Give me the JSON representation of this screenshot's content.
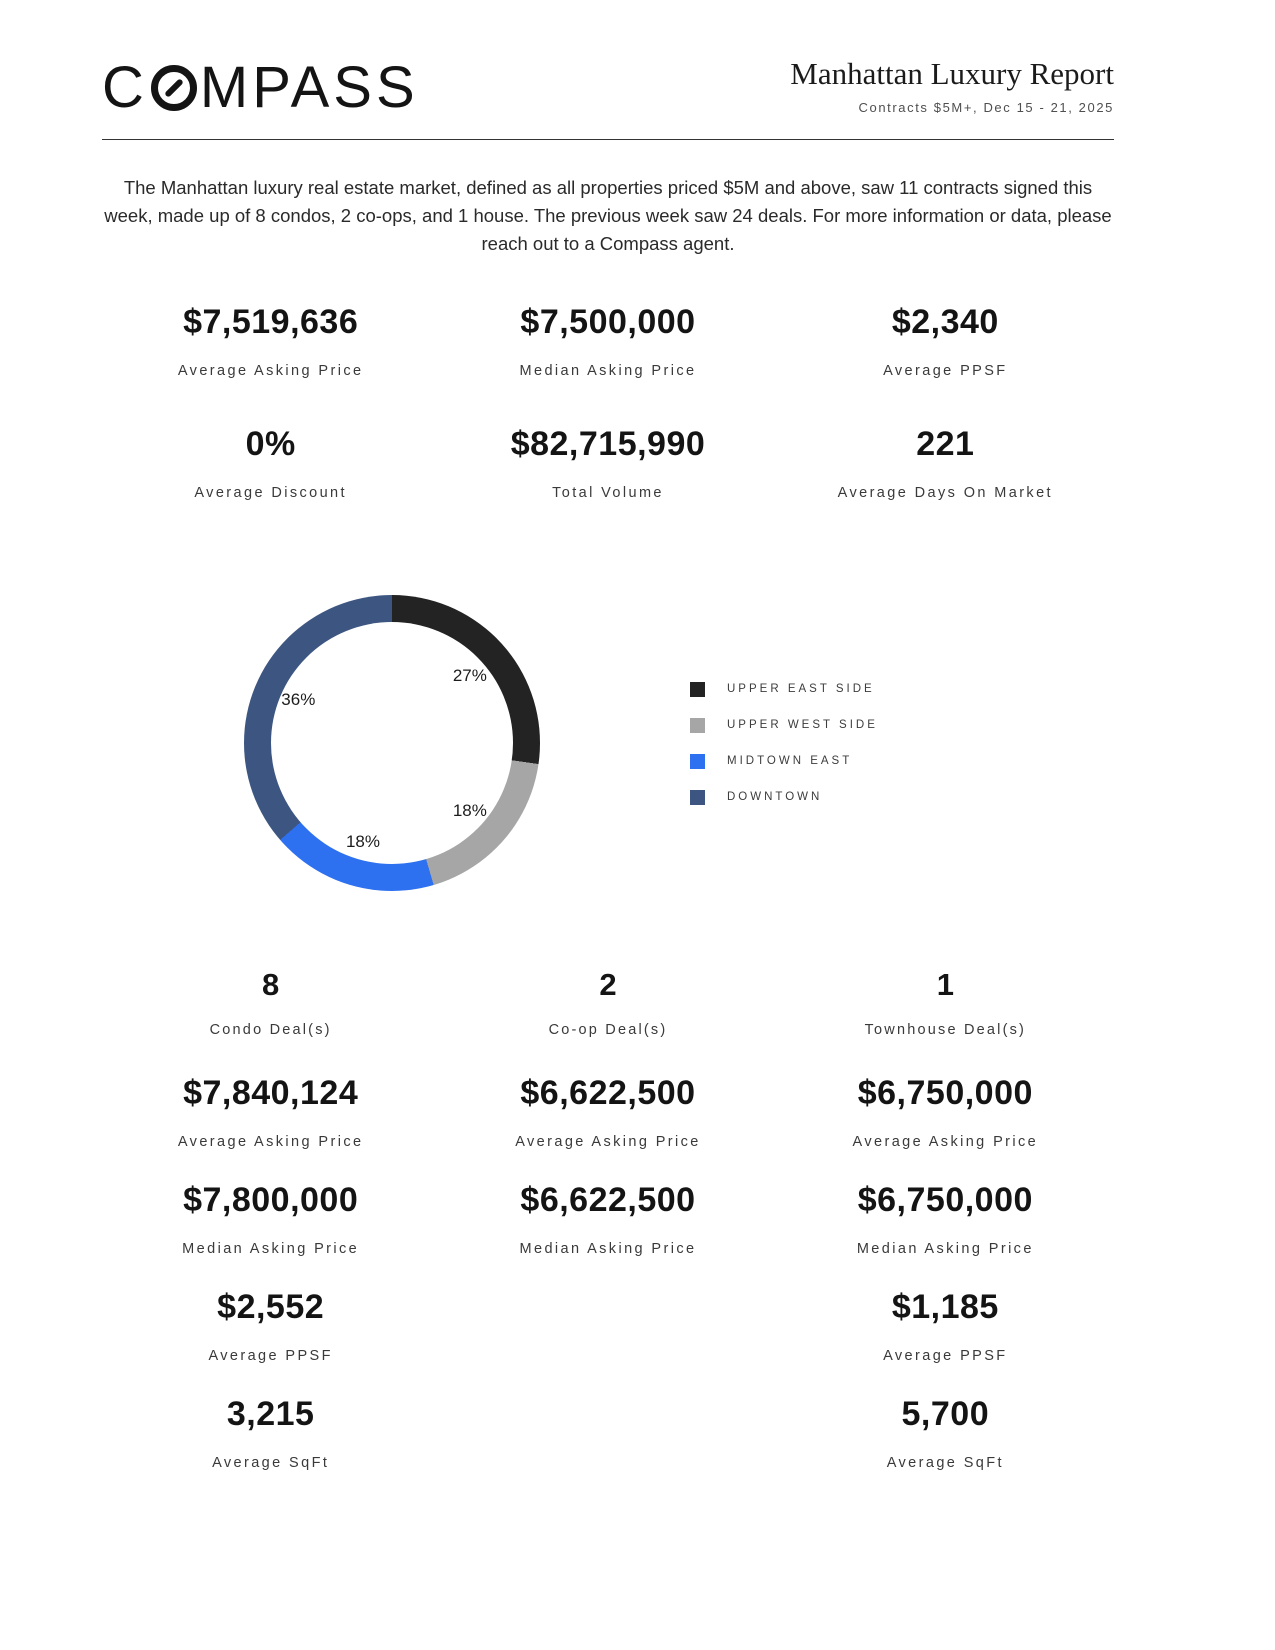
{
  "header": {
    "logo_prefix": "C",
    "logo_suffix": "MPASS",
    "title": "Manhattan Luxury Report",
    "subtitle": "Contracts $5M+, Dec 15 - 21, 2025"
  },
  "intro": "The Manhattan luxury real estate market, defined as all properties priced $5M and above, saw 11 contracts signed this week, made up of 8 condos, 2 co-ops, and 1 house. The previous week saw 24 deals. For more information or data, please reach out to a Compass agent.",
  "summary_stats": [
    {
      "value": "$7,519,636",
      "label": "Average Asking Price"
    },
    {
      "value": "$7,500,000",
      "label": "Median Asking Price"
    },
    {
      "value": "$2,340",
      "label": "Average PPSF"
    },
    {
      "value": "0%",
      "label": "Average Discount"
    },
    {
      "value": "$82,715,990",
      "label": "Total Volume"
    },
    {
      "value": "221",
      "label": "Average Days On Market"
    }
  ],
  "chart_data": {
    "type": "pie",
    "variant": "donut",
    "title": "",
    "categories": [
      "UPPER EAST SIDE",
      "UPPER WEST SIDE",
      "MIDTOWN EAST",
      "DOWNTOWN"
    ],
    "values": [
      27,
      18,
      18,
      36
    ],
    "slice_labels": [
      "27%",
      "18%",
      "18%",
      "36%"
    ],
    "colors": [
      "#232323",
      "#a6a6a6",
      "#2e71f0",
      "#3d5681"
    ],
    "legend_position": "right",
    "start_angle_deg": 0,
    "direction": "clockwise"
  },
  "deal_columns": [
    {
      "count": "8",
      "count_label": "Condo Deal(s)",
      "stats": [
        {
          "value": "$7,840,124",
          "label": "Average Asking Price"
        },
        {
          "value": "$7,800,000",
          "label": "Median Asking Price"
        },
        {
          "value": "$2,552",
          "label": "Average PPSF"
        },
        {
          "value": "3,215",
          "label": "Average SqFt"
        }
      ]
    },
    {
      "count": "2",
      "count_label": "Co-op Deal(s)",
      "stats": [
        {
          "value": "$6,622,500",
          "label": "Average Asking Price"
        },
        {
          "value": "$6,622,500",
          "label": "Median Asking Price"
        },
        {
          "value": "",
          "label": ""
        },
        {
          "value": "",
          "label": ""
        }
      ]
    },
    {
      "count": "1",
      "count_label": "Townhouse Deal(s)",
      "stats": [
        {
          "value": "$6,750,000",
          "label": "Average Asking Price"
        },
        {
          "value": "$6,750,000",
          "label": "Median Asking Price"
        },
        {
          "value": "$1,185",
          "label": "Average PPSF"
        },
        {
          "value": "5,700",
          "label": "Average SqFt"
        }
      ]
    }
  ]
}
